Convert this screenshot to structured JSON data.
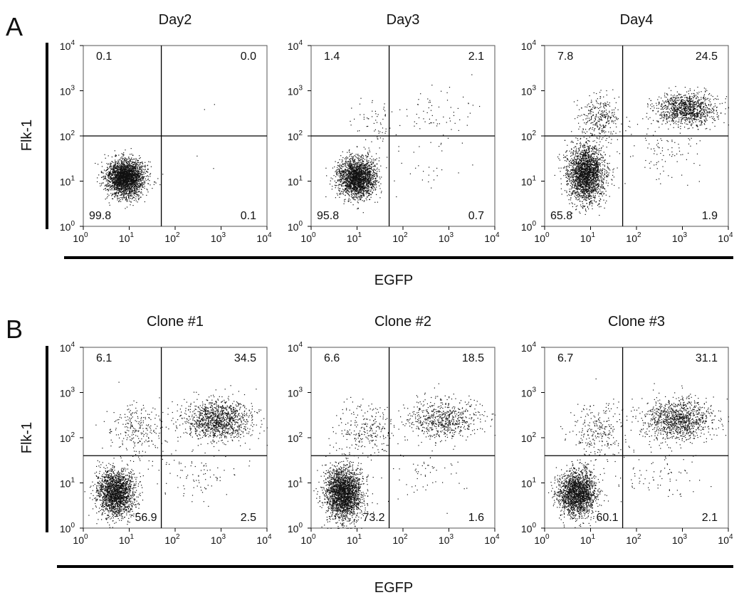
{
  "figure": {
    "panel_labels": [
      "A",
      "B"
    ],
    "y_axis_label": "Flk-1",
    "x_axis_label": "EGFP"
  },
  "axis": {
    "scale": "log",
    "range": [
      1,
      10000
    ],
    "ticks": [
      {
        "base": "10",
        "exp": "0"
      },
      {
        "base": "10",
        "exp": "1"
      },
      {
        "base": "10",
        "exp": "2"
      },
      {
        "base": "10",
        "exp": "3"
      },
      {
        "base": "10",
        "exp": "4"
      }
    ]
  },
  "chart_data": [
    {
      "type": "scatter",
      "panel": "A",
      "title": "Day2",
      "xlim": [
        1,
        10000
      ],
      "ylim": [
        1,
        10000
      ],
      "log_x": true,
      "log_y": true,
      "gate": {
        "x": 50,
        "y": 100
      },
      "quadrants": {
        "upper_left": "0.1",
        "upper_right": "0.0",
        "lower_left": "99.8",
        "lower_right": "0.1"
      },
      "populations": [
        {
          "x_center": 8,
          "y_center": 12,
          "spread_x": 0.2,
          "spread_y": 0.2,
          "count": 2600
        },
        {
          "x_center": 600,
          "y_center": 700,
          "spread_x": 0.3,
          "spread_y": 0.2,
          "count": 2
        },
        {
          "x_center": 150,
          "y_center": 15,
          "spread_x": 0.4,
          "spread_y": 0.2,
          "count": 3
        }
      ]
    },
    {
      "type": "scatter",
      "panel": "A",
      "title": "Day3",
      "xlim": [
        1,
        10000
      ],
      "ylim": [
        1,
        10000
      ],
      "log_x": true,
      "log_y": true,
      "gate": {
        "x": 50,
        "y": 100
      },
      "quadrants": {
        "upper_left": "1.4",
        "upper_right": "2.1",
        "lower_left": "95.8",
        "lower_right": "0.7"
      },
      "populations": [
        {
          "x_center": 10,
          "y_center": 12,
          "spread_x": 0.2,
          "spread_y": 0.22,
          "count": 2200
        },
        {
          "x_center": 25,
          "y_center": 200,
          "spread_x": 0.2,
          "spread_y": 0.25,
          "count": 60
        },
        {
          "x_center": 600,
          "y_center": 300,
          "spread_x": 0.45,
          "spread_y": 0.3,
          "count": 70
        },
        {
          "x_center": 300,
          "y_center": 20,
          "spread_x": 0.45,
          "spread_y": 0.3,
          "count": 25
        }
      ]
    },
    {
      "type": "scatter",
      "panel": "A",
      "title": "Day4",
      "xlim": [
        1,
        10000
      ],
      "ylim": [
        1,
        10000
      ],
      "log_x": true,
      "log_y": true,
      "gate": {
        "x": 50,
        "y": 100
      },
      "quadrants": {
        "upper_left": "7.8",
        "upper_right": "24.5",
        "lower_left": "65.8",
        "lower_right": "1.9"
      },
      "populations": [
        {
          "x_center": 8,
          "y_center": 15,
          "spread_x": 0.2,
          "spread_y": 0.3,
          "count": 2300
        },
        {
          "x_center": 15,
          "y_center": 250,
          "spread_x": 0.22,
          "spread_y": 0.25,
          "count": 320
        },
        {
          "x_center": 1200,
          "y_center": 400,
          "spread_x": 0.32,
          "spread_y": 0.18,
          "count": 1100
        },
        {
          "x_center": 400,
          "y_center": 40,
          "spread_x": 0.45,
          "spread_y": 0.3,
          "count": 90
        }
      ]
    },
    {
      "type": "scatter",
      "panel": "B",
      "title": "Clone #1",
      "xlim": [
        1,
        10000
      ],
      "ylim": [
        1,
        10000
      ],
      "log_x": true,
      "log_y": true,
      "gate": {
        "x": 50,
        "y": 40
      },
      "quadrants": {
        "upper_left": "6.1",
        "upper_right": "34.5",
        "lower_left": "56.9",
        "lower_right": "2.5"
      },
      "populations": [
        {
          "x_center": 5,
          "y_center": 6,
          "spread_x": 0.2,
          "spread_y": 0.25,
          "count": 2000
        },
        {
          "x_center": 15,
          "y_center": 150,
          "spread_x": 0.3,
          "spread_y": 0.3,
          "count": 250
        },
        {
          "x_center": 800,
          "y_center": 250,
          "spread_x": 0.38,
          "spread_y": 0.22,
          "count": 1200
        },
        {
          "x_center": 300,
          "y_center": 15,
          "spread_x": 0.45,
          "spread_y": 0.3,
          "count": 90
        }
      ]
    },
    {
      "type": "scatter",
      "panel": "B",
      "title": "Clone #2",
      "xlim": [
        1,
        10000
      ],
      "ylim": [
        1,
        10000
      ],
      "log_x": true,
      "log_y": true,
      "gate": {
        "x": 50,
        "y": 40
      },
      "quadrants": {
        "upper_left": "6.6",
        "upper_right": "18.5",
        "lower_left": "73.2",
        "lower_right": "1.6"
      },
      "populations": [
        {
          "x_center": 5,
          "y_center": 6,
          "spread_x": 0.2,
          "spread_y": 0.28,
          "count": 2400
        },
        {
          "x_center": 15,
          "y_center": 150,
          "spread_x": 0.3,
          "spread_y": 0.3,
          "count": 250
        },
        {
          "x_center": 700,
          "y_center": 250,
          "spread_x": 0.38,
          "spread_y": 0.22,
          "count": 650
        },
        {
          "x_center": 300,
          "y_center": 15,
          "spread_x": 0.45,
          "spread_y": 0.3,
          "count": 60
        }
      ]
    },
    {
      "type": "scatter",
      "panel": "B",
      "title": "Clone #3",
      "xlim": [
        1,
        10000
      ],
      "ylim": [
        1,
        10000
      ],
      "log_x": true,
      "log_y": true,
      "gate": {
        "x": 50,
        "y": 40
      },
      "quadrants": {
        "upper_left": "6.7",
        "upper_right": "31.1",
        "lower_left": "60.1",
        "lower_right": "2.1"
      },
      "populations": [
        {
          "x_center": 5,
          "y_center": 6,
          "spread_x": 0.2,
          "spread_y": 0.25,
          "count": 2000
        },
        {
          "x_center": 15,
          "y_center": 150,
          "spread_x": 0.3,
          "spread_y": 0.3,
          "count": 260
        },
        {
          "x_center": 800,
          "y_center": 250,
          "spread_x": 0.38,
          "spread_y": 0.22,
          "count": 1100
        },
        {
          "x_center": 300,
          "y_center": 15,
          "spread_x": 0.45,
          "spread_y": 0.3,
          "count": 80
        }
      ]
    }
  ]
}
